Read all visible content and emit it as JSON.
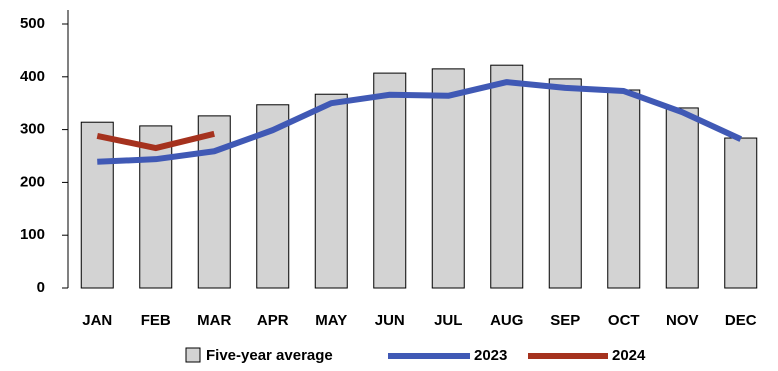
{
  "chart_data": {
    "type": "bar",
    "categories": [
      "JAN",
      "FEB",
      "MAR",
      "APR",
      "MAY",
      "JUN",
      "JUL",
      "AUG",
      "SEP",
      "OCT",
      "NOV",
      "DEC"
    ],
    "series": [
      {
        "name": "Five-year average",
        "type": "bar",
        "color": "#d3d3d3",
        "values": [
          314,
          307,
          326,
          347,
          367,
          407,
          415,
          422,
          396,
          375,
          341,
          284
        ]
      },
      {
        "name": "2023",
        "type": "line",
        "color": "#4059b5",
        "values": [
          239,
          244,
          259,
          299,
          350,
          366,
          364,
          390,
          379,
          373,
          333,
          282
        ]
      },
      {
        "name": "2024",
        "type": "line",
        "color": "#a5321e",
        "values": [
          288,
          265,
          292,
          null,
          null,
          null,
          null,
          null,
          null,
          null,
          null,
          null
        ]
      }
    ],
    "ylim": [
      0,
      500
    ],
    "yticks": [
      0,
      100,
      200,
      300,
      400,
      500
    ],
    "grid": false
  }
}
